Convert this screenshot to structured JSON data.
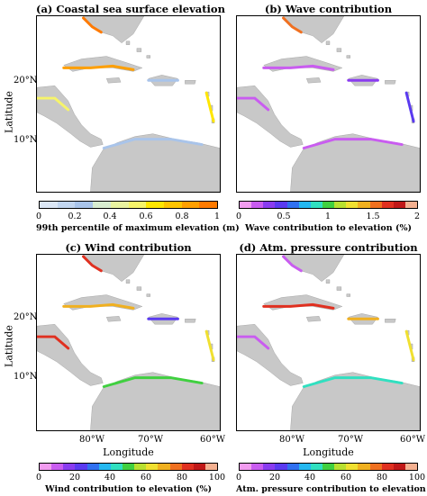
{
  "panels": {
    "a": {
      "title": "(a) Coastal sea surface elevation"
    },
    "b": {
      "title": "(b) Wave contribution"
    },
    "c": {
      "title": "(c) Wind contribution"
    },
    "d": {
      "title": "(d) Atm. pressure contribution"
    }
  },
  "axes": {
    "ylabel": "Latitude",
    "xlabel": "Longitude",
    "lat_ticks": [
      "20°N",
      "10°N"
    ],
    "lon_ticks": [
      "80°W",
      "70°W",
      "60°W"
    ]
  },
  "colorbars": {
    "a": {
      "label": "99th percentile of maximum elevation (m)",
      "ticks": [
        "0",
        "0.2",
        "0.4",
        "0.6",
        "0.8",
        "1"
      ],
      "colors": [
        "#dbe6f5",
        "#c2d6f0",
        "#a9c4ea",
        "#d8ecd0",
        "#e9f3a0",
        "#f6f46a",
        "#ffe600",
        "#ffc400",
        "#ff9f00",
        "#ff7a00"
      ]
    },
    "b": {
      "label": "Wave contribution to elevation (%)",
      "ticks": [
        "0",
        "0.5",
        "1",
        "1.5",
        "2"
      ],
      "colors": [
        "#f29cf0",
        "#c95cf0",
        "#8a3cf0",
        "#5a3af0",
        "#3070f0",
        "#24b8f0",
        "#30e0c0",
        "#40d040",
        "#b8e030",
        "#f0e030",
        "#f0b020",
        "#f07020",
        "#e03020",
        "#c01818",
        "#f4b090"
      ]
    },
    "c": {
      "label": "Wind contribution to elevation (%)",
      "ticks": [
        "0",
        "20",
        "40",
        "60",
        "80",
        "100"
      ],
      "colors": [
        "#f29cf0",
        "#c95cf0",
        "#8a3cf0",
        "#5a3af0",
        "#3070f0",
        "#24b8f0",
        "#30e0c0",
        "#40d040",
        "#b8e030",
        "#f0e030",
        "#f0b020",
        "#f07020",
        "#e03020",
        "#c01818",
        "#f4b090"
      ]
    },
    "d": {
      "label": "Atm. pressure contribution to elevation (%)",
      "ticks": [
        "0",
        "20",
        "40",
        "60",
        "80",
        "100"
      ],
      "colors": [
        "#f29cf0",
        "#c95cf0",
        "#8a3cf0",
        "#5a3af0",
        "#3070f0",
        "#24b8f0",
        "#30e0c0",
        "#40d040",
        "#b8e030",
        "#f0e030",
        "#f0b020",
        "#f07020",
        "#e03020",
        "#c01818",
        "#f4b090"
      ]
    }
  },
  "colors": {
    "land": "#c8c8c8",
    "sea": "#ffffff"
  }
}
